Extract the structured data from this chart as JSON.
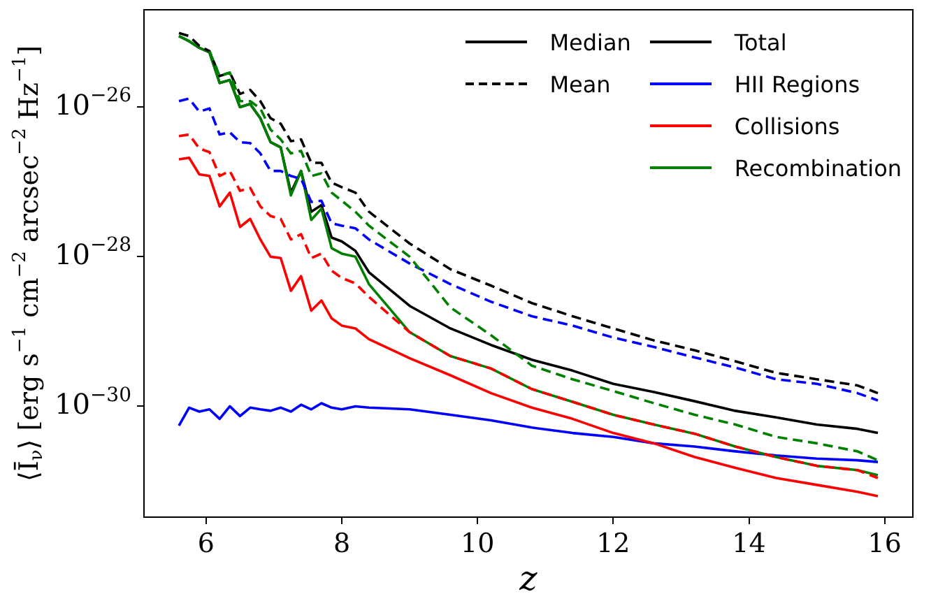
{
  "chart_data": {
    "type": "line",
    "xlabel": "z",
    "ylabel": "⟨Ī$_{ν}$⟩ [erg s$^{−1}$ cm$^{−2}$ arcsec$^{−2}$ Hz$^{−1}$]",
    "log": true,
    "legend": "top right",
    "annotations": [
      "Median",
      "Mean"
    ],
    "xlim": [
      5.085,
      16.415
    ],
    "xticks": [
      6,
      8,
      10,
      12,
      14,
      16
    ],
    "ylim": [
      3.3e-32,
      2e-25
    ],
    "yticks": [
      {
        "value": 1e-26,
        "label": "10$^{−26}$"
      },
      {
        "value": 1e-28,
        "label": "10$^{−28}$"
      },
      {
        "value": 1e-30,
        "label": "10$^{−30}$"
      }
    ],
    "x": [
      5.6,
      5.75,
      5.9,
      6.05,
      6.2,
      6.35,
      6.5,
      6.65,
      6.8,
      6.95,
      7.1,
      7.25,
      7.4,
      7.55,
      7.7,
      7.85,
      8.0,
      8.2,
      8.4,
      9.0,
      9.6,
      10.2,
      10.8,
      11.4,
      12.0,
      12.6,
      13.2,
      13.8,
      14.4,
      15.0,
      15.6,
      15.9
    ],
    "series": [
      {
        "name": "Total",
        "color": "#000000",
        "line_style": "solid",
        "values": [
          8.9e-26,
          7.6e-26,
          6.2e-26,
          5.4e-26,
          2.1e-26,
          2.3e-26,
          1e-26,
          1.1e-26,
          7.1e-27,
          3.4e-27,
          2.9e-27,
          7.2e-28,
          1.4e-27,
          4e-28,
          4.9e-28,
          1.8e-28,
          1.6e-28,
          1.2e-28,
          6.2e-29,
          2.2e-29,
          1.1e-29,
          6.6e-30,
          4.2e-30,
          3e-30,
          2e-30,
          1.55e-30,
          1.17e-30,
          8.7e-31,
          7.1e-31,
          5.7e-31,
          5e-31,
          4.4e-31
        ]
      },
      {
        "name": "HII Regions",
        "color": "#0000ff",
        "line_style": "solid",
        "values": [
          5.5e-31,
          9.6e-31,
          8.5e-31,
          9.1e-31,
          6.8e-31,
          1e-30,
          7.4e-31,
          9.6e-31,
          9.1e-31,
          8.7e-31,
          9.6e-31,
          8.5e-31,
          1.05e-30,
          9.1e-31,
          1.1e-30,
          9.6e-31,
          9.1e-31,
          1e-30,
          9.6e-31,
          9.1e-31,
          7.7e-31,
          6.5e-31,
          5.2e-31,
          4.4e-31,
          3.9e-31,
          3.2e-31,
          2.9e-31,
          2.5e-31,
          2.2e-31,
          2e-31,
          1.9e-31,
          1.8e-31
        ]
      },
      {
        "name": "Collisions",
        "color": "#ff0000",
        "line_style": "solid",
        "values": [
          2e-27,
          2.1e-27,
          1.26e-27,
          1.2e-27,
          4.7e-28,
          7.2e-28,
          2.5e-28,
          3.2e-28,
          1.7e-28,
          1e-28,
          9.6e-29,
          3.5e-29,
          5.5e-29,
          1.9e-29,
          2.6e-29,
          1.5e-29,
          1.2e-29,
          1.1e-29,
          7.9e-30,
          4.4e-30,
          2.6e-30,
          1.5e-30,
          9.6e-31,
          6.8e-31,
          4.4e-31,
          3.2e-31,
          2.1e-31,
          1.5e-31,
          1.1e-31,
          8.9e-32,
          7.2e-32,
          6.3e-32
        ]
      },
      {
        "name": "Recombination",
        "color": "#008000",
        "line_style": "solid",
        "values": [
          8.9e-26,
          7.6e-26,
          6.2e-26,
          5.4e-26,
          2.1e-26,
          2.3e-26,
          1e-26,
          1.1e-26,
          7.1e-27,
          3.4e-27,
          2.9e-27,
          6.6e-28,
          1.4e-27,
          3.1e-28,
          4.4e-28,
          1.3e-28,
          1.1e-28,
          1e-28,
          4.3e-29,
          9.8e-30,
          4.7e-30,
          3.2e-30,
          1.7e-30,
          1.15e-30,
          7.7e-31,
          5.7e-31,
          4.3e-31,
          2.9e-31,
          2.1e-31,
          1.6e-31,
          1.4e-31,
          1.2e-31
        ]
      },
      {
        "color": "#000000",
        "line_style": "dashed",
        "values": [
          9.8e-26,
          8.9e-26,
          6.6e-26,
          5.6e-26,
          2.6e-26,
          2.9e-26,
          1.5e-26,
          1.7e-26,
          1.2e-26,
          7.1e-27,
          6e-27,
          3.5e-27,
          3.7e-27,
          1.8e-27,
          1.8e-27,
          9.8e-28,
          8.5e-28,
          7.2e-28,
          4e-28,
          1.5e-28,
          6.8e-29,
          4.1e-29,
          2.4e-29,
          1.6e-29,
          1.1e-29,
          7.6e-30,
          5.6e-30,
          4e-30,
          2.8e-30,
          2.3e-30,
          1.9e-30,
          1.5e-30
        ]
      },
      {
        "color": "#0000ff",
        "line_style": "dashed",
        "values": [
          1.2e-26,
          1.3e-26,
          8.7e-27,
          9.6e-27,
          4.3e-27,
          4.6e-27,
          3.4e-27,
          3.3e-27,
          2.4e-27,
          1.4e-27,
          1.4e-27,
          1.2e-27,
          1.1e-27,
          5.4e-28,
          5.6e-28,
          2.8e-28,
          2.6e-28,
          2.4e-28,
          1.7e-28,
          8.1e-29,
          4.3e-29,
          2.5e-29,
          1.6e-29,
          1.2e-29,
          8.3e-30,
          6.2e-30,
          4.5e-30,
          3.3e-30,
          2.3e-30,
          2e-30,
          1.5e-30,
          1.2e-30
        ]
      },
      {
        "color": "#ff0000",
        "line_style": "dashed",
        "values": [
          4.1e-27,
          4.3e-27,
          2.8e-27,
          2.5e-27,
          1.2e-27,
          1.4e-27,
          7.6e-28,
          8.3e-28,
          4.7e-28,
          3.5e-28,
          3.2e-28,
          1.7e-28,
          2e-28,
          9.6e-29,
          1.1e-28,
          6.5e-29,
          5.2e-29,
          4.4e-29,
          2.9e-29,
          9.8e-30,
          4.7e-30,
          3.2e-30,
          1.7e-30,
          1.15e-30,
          7.7e-31,
          5.7e-31,
          4.3e-31,
          2.9e-31,
          2.1e-31,
          1.6e-31,
          1.4e-31,
          1.1e-31
        ]
      },
      {
        "color": "#008000",
        "line_style": "dashed",
        "values": [
          null,
          null,
          null,
          5.6e-26,
          2.6e-26,
          2.9e-26,
          1.2e-26,
          1.2e-26,
          9.6e-27,
          5e-27,
          3.7e-27,
          2.4e-27,
          2.6e-27,
          1.2e-27,
          1.3e-27,
          7.2e-28,
          5.6e-28,
          4e-28,
          2.6e-28,
          1e-28,
          2.1e-29,
          8.9e-30,
          3.5e-30,
          2.3e-30,
          1.6e-30,
          1.1e-30,
          7.7e-31,
          5.7e-31,
          3.9e-31,
          3.2e-31,
          2.5e-31,
          1.9e-31
        ]
      }
    ]
  }
}
